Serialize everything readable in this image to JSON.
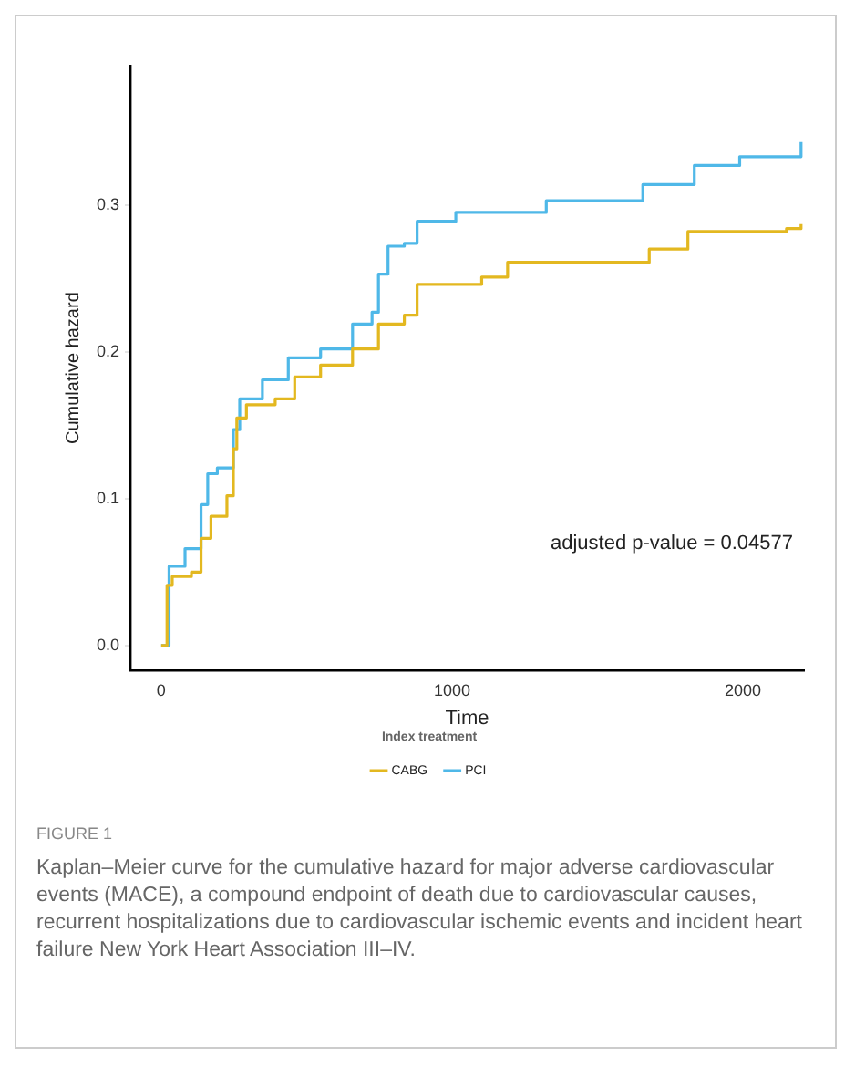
{
  "chart_data": {
    "type": "step",
    "xlabel": "Time",
    "ylabel": "Cumulative hazard",
    "legend_title": "Index treatment",
    "xlim": [
      -106,
      2210
    ],
    "ylim": [
      -0.017,
      0.395
    ],
    "xticks": [
      0,
      1000,
      2000
    ],
    "yticks": [
      {
        "value": 0,
        "label": "0.0"
      },
      0.1,
      0.2,
      0.3
    ],
    "grid": false,
    "legend": "bottom",
    "marker": "none",
    "line_style": "solid",
    "series": [
      {
        "name": "CABG",
        "color": "#e3b820",
        "x": [
          0,
          20,
          38,
          104,
          137,
          171,
          226,
          248,
          260,
          293,
          392,
          459,
          548,
          658,
          747,
          836,
          880,
          1102,
          1191,
          1678,
          1811,
          2150,
          2200
        ],
        "values": [
          0,
          0.041,
          0.047,
          0.05,
          0.073,
          0.088,
          0.102,
          0.134,
          0.155,
          0.164,
          0.168,
          0.183,
          0.191,
          0.202,
          0.219,
          0.225,
          0.246,
          0.251,
          0.261,
          0.27,
          0.282,
          0.284,
          0.287
        ]
      },
      {
        "name": "PCI",
        "color": "#4fb8e8",
        "x": [
          0,
          27,
          82,
          137,
          160,
          193,
          248,
          270,
          348,
          437,
          548,
          658,
          725,
          747,
          780,
          836,
          880,
          1013,
          1324,
          1656,
          1833,
          1989,
          2200
        ],
        "values": [
          0,
          0.054,
          0.066,
          0.096,
          0.117,
          0.121,
          0.147,
          0.168,
          0.181,
          0.196,
          0.202,
          0.219,
          0.227,
          0.253,
          0.272,
          0.274,
          0.289,
          0.295,
          0.303,
          0.314,
          0.327,
          0.333,
          0.343
        ]
      }
    ],
    "annotations": [
      "adjusted p-value = 0.04577",
      "FIGURE 1",
      "Kaplan–Meier curve for the cumulative hazard for major adverse cardiovascular events (MACE), a compound endpoint of death due to cardiovascular causes, recurrent hospitalizations due to cardiovascular ischemic events and incident heart failure New York Heart Association III–IV."
    ]
  }
}
